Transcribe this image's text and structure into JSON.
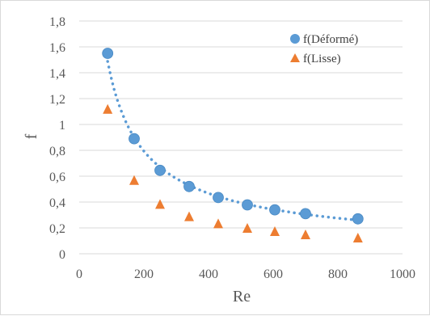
{
  "chart_data": {
    "type": "scatter",
    "xlabel": "Re",
    "ylabel": "f",
    "xlim": [
      0,
      1000
    ],
    "ylim": [
      0,
      1.8
    ],
    "x_ticks": [
      "0",
      "200",
      "400",
      "600",
      "800",
      "1000"
    ],
    "y_ticks": [
      "0",
      "0,2",
      "0,4",
      "0,6",
      "0,8",
      "1",
      "1,2",
      "1,4",
      "1,6",
      "1,8"
    ],
    "grid": "horizontal",
    "legend_position": "top-right",
    "series": [
      {
        "name": "f(Déformé)",
        "marker": "circle",
        "color": "#5b9bd5",
        "trendline": "power, dotted",
        "x": [
          88,
          170,
          250,
          340,
          430,
          520,
          605,
          700,
          862
        ],
        "y": [
          1.55,
          0.89,
          0.645,
          0.52,
          0.435,
          0.378,
          0.34,
          0.31,
          0.27
        ]
      },
      {
        "name": "f(Lisse)",
        "marker": "triangle",
        "color": "#ed7d31",
        "x": [
          88,
          170,
          250,
          340,
          430,
          520,
          605,
          700,
          862
        ],
        "y": [
          1.12,
          0.57,
          0.385,
          0.29,
          0.235,
          0.2,
          0.175,
          0.15,
          0.125
        ]
      }
    ]
  }
}
